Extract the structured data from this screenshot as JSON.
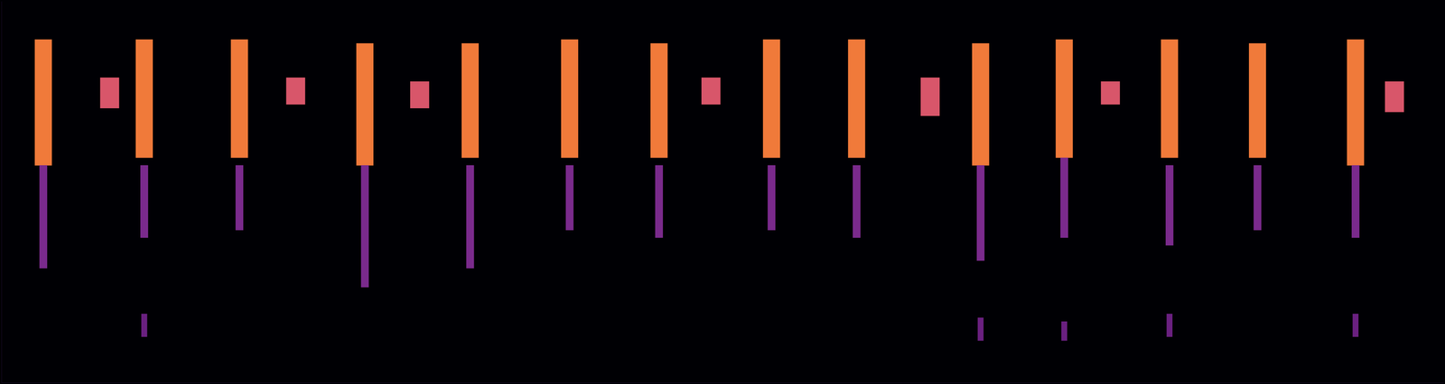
{
  "chart_data": {
    "type": "bar",
    "xlim": [
      0,
      100
    ],
    "ylim": [
      0,
      100
    ],
    "grid": false,
    "tick_labels": false,
    "series": [
      {
        "color": "#7a2a8c",
        "x": [
          2.9,
          9.9,
          16.5,
          25.2,
          32.5,
          39.4,
          45.6,
          53.4,
          59.3,
          67.9,
          73.7,
          81.0,
          87.1,
          93.9
        ],
        "values": [
          [
            30,
            57
          ],
          [
            38,
            57
          ],
          [
            40,
            57
          ],
          [
            25,
            57
          ],
          [
            30,
            57
          ],
          [
            40,
            57
          ],
          [
            38,
            57
          ],
          [
            40,
            57
          ],
          [
            38,
            57
          ],
          [
            32,
            57
          ],
          [
            38,
            59
          ],
          [
            36,
            57
          ],
          [
            40,
            57
          ],
          [
            38,
            57
          ]
        ]
      },
      {
        "color": "#f07a3a",
        "x": [
          2.9,
          9.9,
          16.5,
          25.2,
          32.5,
          39.4,
          45.6,
          53.4,
          59.3,
          67.9,
          73.7,
          81.0,
          87.1,
          93.9
        ],
        "values": [
          [
            57,
            90
          ],
          [
            59,
            90
          ],
          [
            59,
            90
          ],
          [
            57,
            89
          ],
          [
            59,
            89
          ],
          [
            59,
            90
          ],
          [
            59,
            89
          ],
          [
            59,
            90
          ],
          [
            59,
            90
          ],
          [
            57,
            89
          ],
          [
            59,
            90
          ],
          [
            59,
            90
          ],
          [
            59,
            89
          ],
          [
            57,
            90
          ]
        ]
      },
      {
        "color": "#d8566a",
        "x": [
          7.5,
          20.4,
          29.0,
          49.2,
          64.4,
          76.9,
          96.6
        ],
        "values": [
          [
            72,
            80
          ],
          [
            73,
            80
          ],
          [
            72,
            79
          ],
          [
            73,
            80
          ],
          [
            70,
            80
          ],
          [
            73,
            79
          ],
          [
            71,
            79
          ]
        ]
      },
      {
        "color": "#6a2080",
        "x": [
          9.9,
          67.9,
          73.7,
          81.0,
          93.9
        ],
        "values": [
          [
            12,
            18
          ],
          [
            11,
            17
          ],
          [
            11,
            16
          ],
          [
            12,
            18
          ],
          [
            12,
            18
          ]
        ]
      }
    ]
  }
}
